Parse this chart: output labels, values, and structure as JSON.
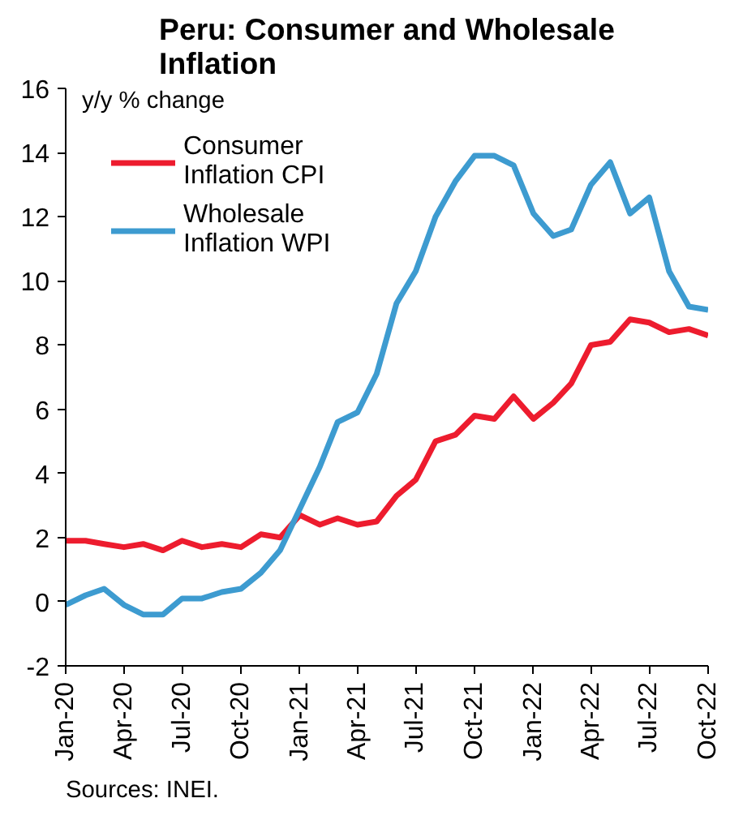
{
  "chart_data": {
    "type": "line",
    "title": "Peru: Consumer and Wholesale Inflation",
    "ylabel": "y/y % change",
    "annotations": [
      "Sources: INEI."
    ],
    "x": [
      "2020-01",
      "2020-02",
      "2020-03",
      "2020-04",
      "2020-05",
      "2020-06",
      "2020-07",
      "2020-08",
      "2020-09",
      "2020-10",
      "2020-11",
      "2020-12",
      "2021-01",
      "2021-02",
      "2021-03",
      "2021-04",
      "2021-05",
      "2021-06",
      "2021-07",
      "2021-08",
      "2021-09",
      "2021-10",
      "2021-11",
      "2021-12",
      "2022-01",
      "2022-02",
      "2022-03",
      "2022-04",
      "2022-05",
      "2022-06",
      "2022-07",
      "2022-08",
      "2022-09",
      "2022-10"
    ],
    "series": [
      {
        "name": "Consumer Inflation CPI",
        "color": "#ed1c2e",
        "values": [
          1.9,
          1.9,
          1.8,
          1.7,
          1.8,
          1.6,
          1.9,
          1.7,
          1.8,
          1.7,
          2.1,
          2.0,
          2.7,
          2.4,
          2.6,
          2.4,
          2.5,
          3.3,
          3.8,
          5.0,
          5.2,
          5.8,
          5.7,
          6.4,
          5.7,
          6.2,
          6.8,
          8.0,
          8.1,
          8.8,
          8.7,
          8.4,
          8.5,
          8.3
        ]
      },
      {
        "name": "Wholesale Inflation WPI",
        "color": "#3d9bd0",
        "values": [
          -0.1,
          0.2,
          0.4,
          -0.1,
          -0.4,
          -0.4,
          0.1,
          0.1,
          0.3,
          0.4,
          0.9,
          1.6,
          2.9,
          4.2,
          5.6,
          5.9,
          7.1,
          9.3,
          10.3,
          12.0,
          13.1,
          13.9,
          13.9,
          13.6,
          12.1,
          11.4,
          11.6,
          13.0,
          13.7,
          12.1,
          12.6,
          10.3,
          9.2,
          9.1
        ]
      }
    ],
    "xlim": [
      "2020-01",
      "2022-10"
    ],
    "xticks": [
      {
        "value": "2020-01",
        "label": "Jan-20"
      },
      {
        "value": "2020-04",
        "label": "Apr-20"
      },
      {
        "value": "2020-07",
        "label": "Jul-20"
      },
      {
        "value": "2020-10",
        "label": "Oct-20"
      },
      {
        "value": "2021-01",
        "label": "Jan-21"
      },
      {
        "value": "2021-04",
        "label": "Apr-21"
      },
      {
        "value": "2021-07",
        "label": "Jul-21"
      },
      {
        "value": "2021-10",
        "label": "Oct-21"
      },
      {
        "value": "2022-01",
        "label": "Jan-22"
      },
      {
        "value": "2022-04",
        "label": "Apr-22"
      },
      {
        "value": "2022-07",
        "label": "Jul-22"
      },
      {
        "value": "2022-10",
        "label": "Oct-22"
      }
    ],
    "ylim": [
      -2,
      16
    ],
    "yticks": [
      -2,
      0,
      2,
      4,
      6,
      8,
      10,
      12,
      14,
      16
    ],
    "grid": false,
    "legend": "top left",
    "marker": "none",
    "line_style": "solid"
  }
}
